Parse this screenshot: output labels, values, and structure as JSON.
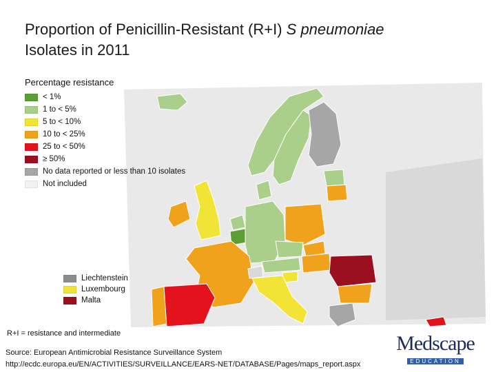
{
  "title": {
    "line1": "Proportion of Penicillin-Resistant (R+I) ",
    "organism": "S pneumoniae",
    "line2": "Isolates in 2011"
  },
  "legend": {
    "title": "Percentage resistance",
    "items": [
      {
        "label": "< 1%",
        "color": "#5a9e34"
      },
      {
        "label": "1 to < 5%",
        "color": "#a9cf8a"
      },
      {
        "label": "5 to < 10%",
        "color": "#f2e436"
      },
      {
        "label": "10 to < 25%",
        "color": "#f0a21c"
      },
      {
        "label": "25 to < 50%",
        "color": "#e3121c"
      },
      {
        "label": "≥ 50%",
        "color": "#9a1020"
      },
      {
        "label": "No data reported or less than 10 isolates",
        "color": "#a6a6a6"
      },
      {
        "label": "Not included",
        "color": "#f2f2f2"
      }
    ]
  },
  "small_states": [
    {
      "label": "Liechtenstein",
      "color": "#8c8c8c"
    },
    {
      "label": "Luxembourg",
      "color": "#f2e436"
    },
    {
      "label": "Malta",
      "color": "#9a1020"
    }
  ],
  "note": "R+I = resistance and intermediate",
  "source": {
    "line1": "Source: European Antimicrobial Resistance Surveillance System",
    "line2": "http://ecdc.europa.eu/EN/ACTIVITIES/SURVEILLANCE/EARS-NET/DATABASE/Pages/maps_report.aspx"
  },
  "logo": {
    "main": "Medscape",
    "sub": "EDUCATION"
  }
}
